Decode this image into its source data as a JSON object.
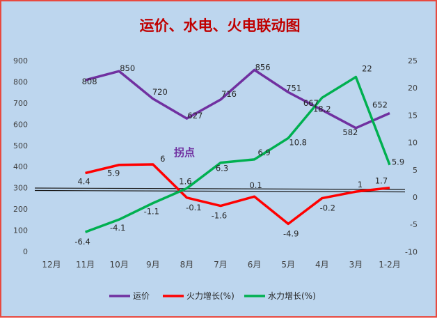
{
  "chart_data": {
    "type": "line",
    "title": "运价、水电、火电联动图",
    "categories": [
      "12月",
      "11月",
      "10月",
      "9月",
      "8月",
      "7月",
      "6月",
      "5月",
      "4月",
      "3月",
      "1-2月"
    ],
    "y_left": {
      "ticks": [
        0,
        100,
        200,
        300,
        400,
        500,
        600,
        700,
        800,
        900
      ],
      "range": [
        0,
        900
      ]
    },
    "y_right": {
      "ticks": [
        -10,
        -5,
        0,
        5,
        10,
        15,
        20,
        25
      ],
      "range": [
        -10,
        25
      ]
    },
    "series": [
      {
        "name": "运价",
        "axis": "left",
        "color": "#7030a0",
        "values": [
          null,
          808,
          850,
          720,
          627,
          716,
          856,
          751,
          667,
          582,
          652
        ],
        "labels": [
          null,
          "808",
          "850",
          "720",
          "627",
          "716",
          "856",
          "751",
          "667",
          "582",
          "652"
        ]
      },
      {
        "name": "火力增长(%)",
        "axis": "right",
        "color": "#ff0000",
        "values": [
          null,
          4.4,
          5.9,
          6,
          -0.1,
          -1.6,
          0.1,
          -4.9,
          -0.2,
          1,
          1.7
        ],
        "labels": [
          null,
          "4.4",
          "5.9",
          "6",
          "-0.1",
          "-1.6",
          "0.1",
          "-4.9",
          "-0.2",
          "1",
          "1.7"
        ]
      },
      {
        "name": "水力增长(%)",
        "axis": "right",
        "color": "#00b050",
        "values": [
          null,
          -6.4,
          -4.1,
          -1.1,
          1.6,
          6.3,
          6.9,
          10.8,
          18.2,
          22,
          5.9
        ],
        "labels": [
          null,
          "-6.4",
          "-4.1",
          "-1.1",
          "1.6",
          "6.3",
          "6.9",
          "10.8",
          "18.2",
          "22",
          "5.9"
        ]
      }
    ],
    "annotations": [
      {
        "text": "拐点",
        "color": "#7030a0"
      }
    ],
    "legend_position": "bottom",
    "grid": false
  }
}
